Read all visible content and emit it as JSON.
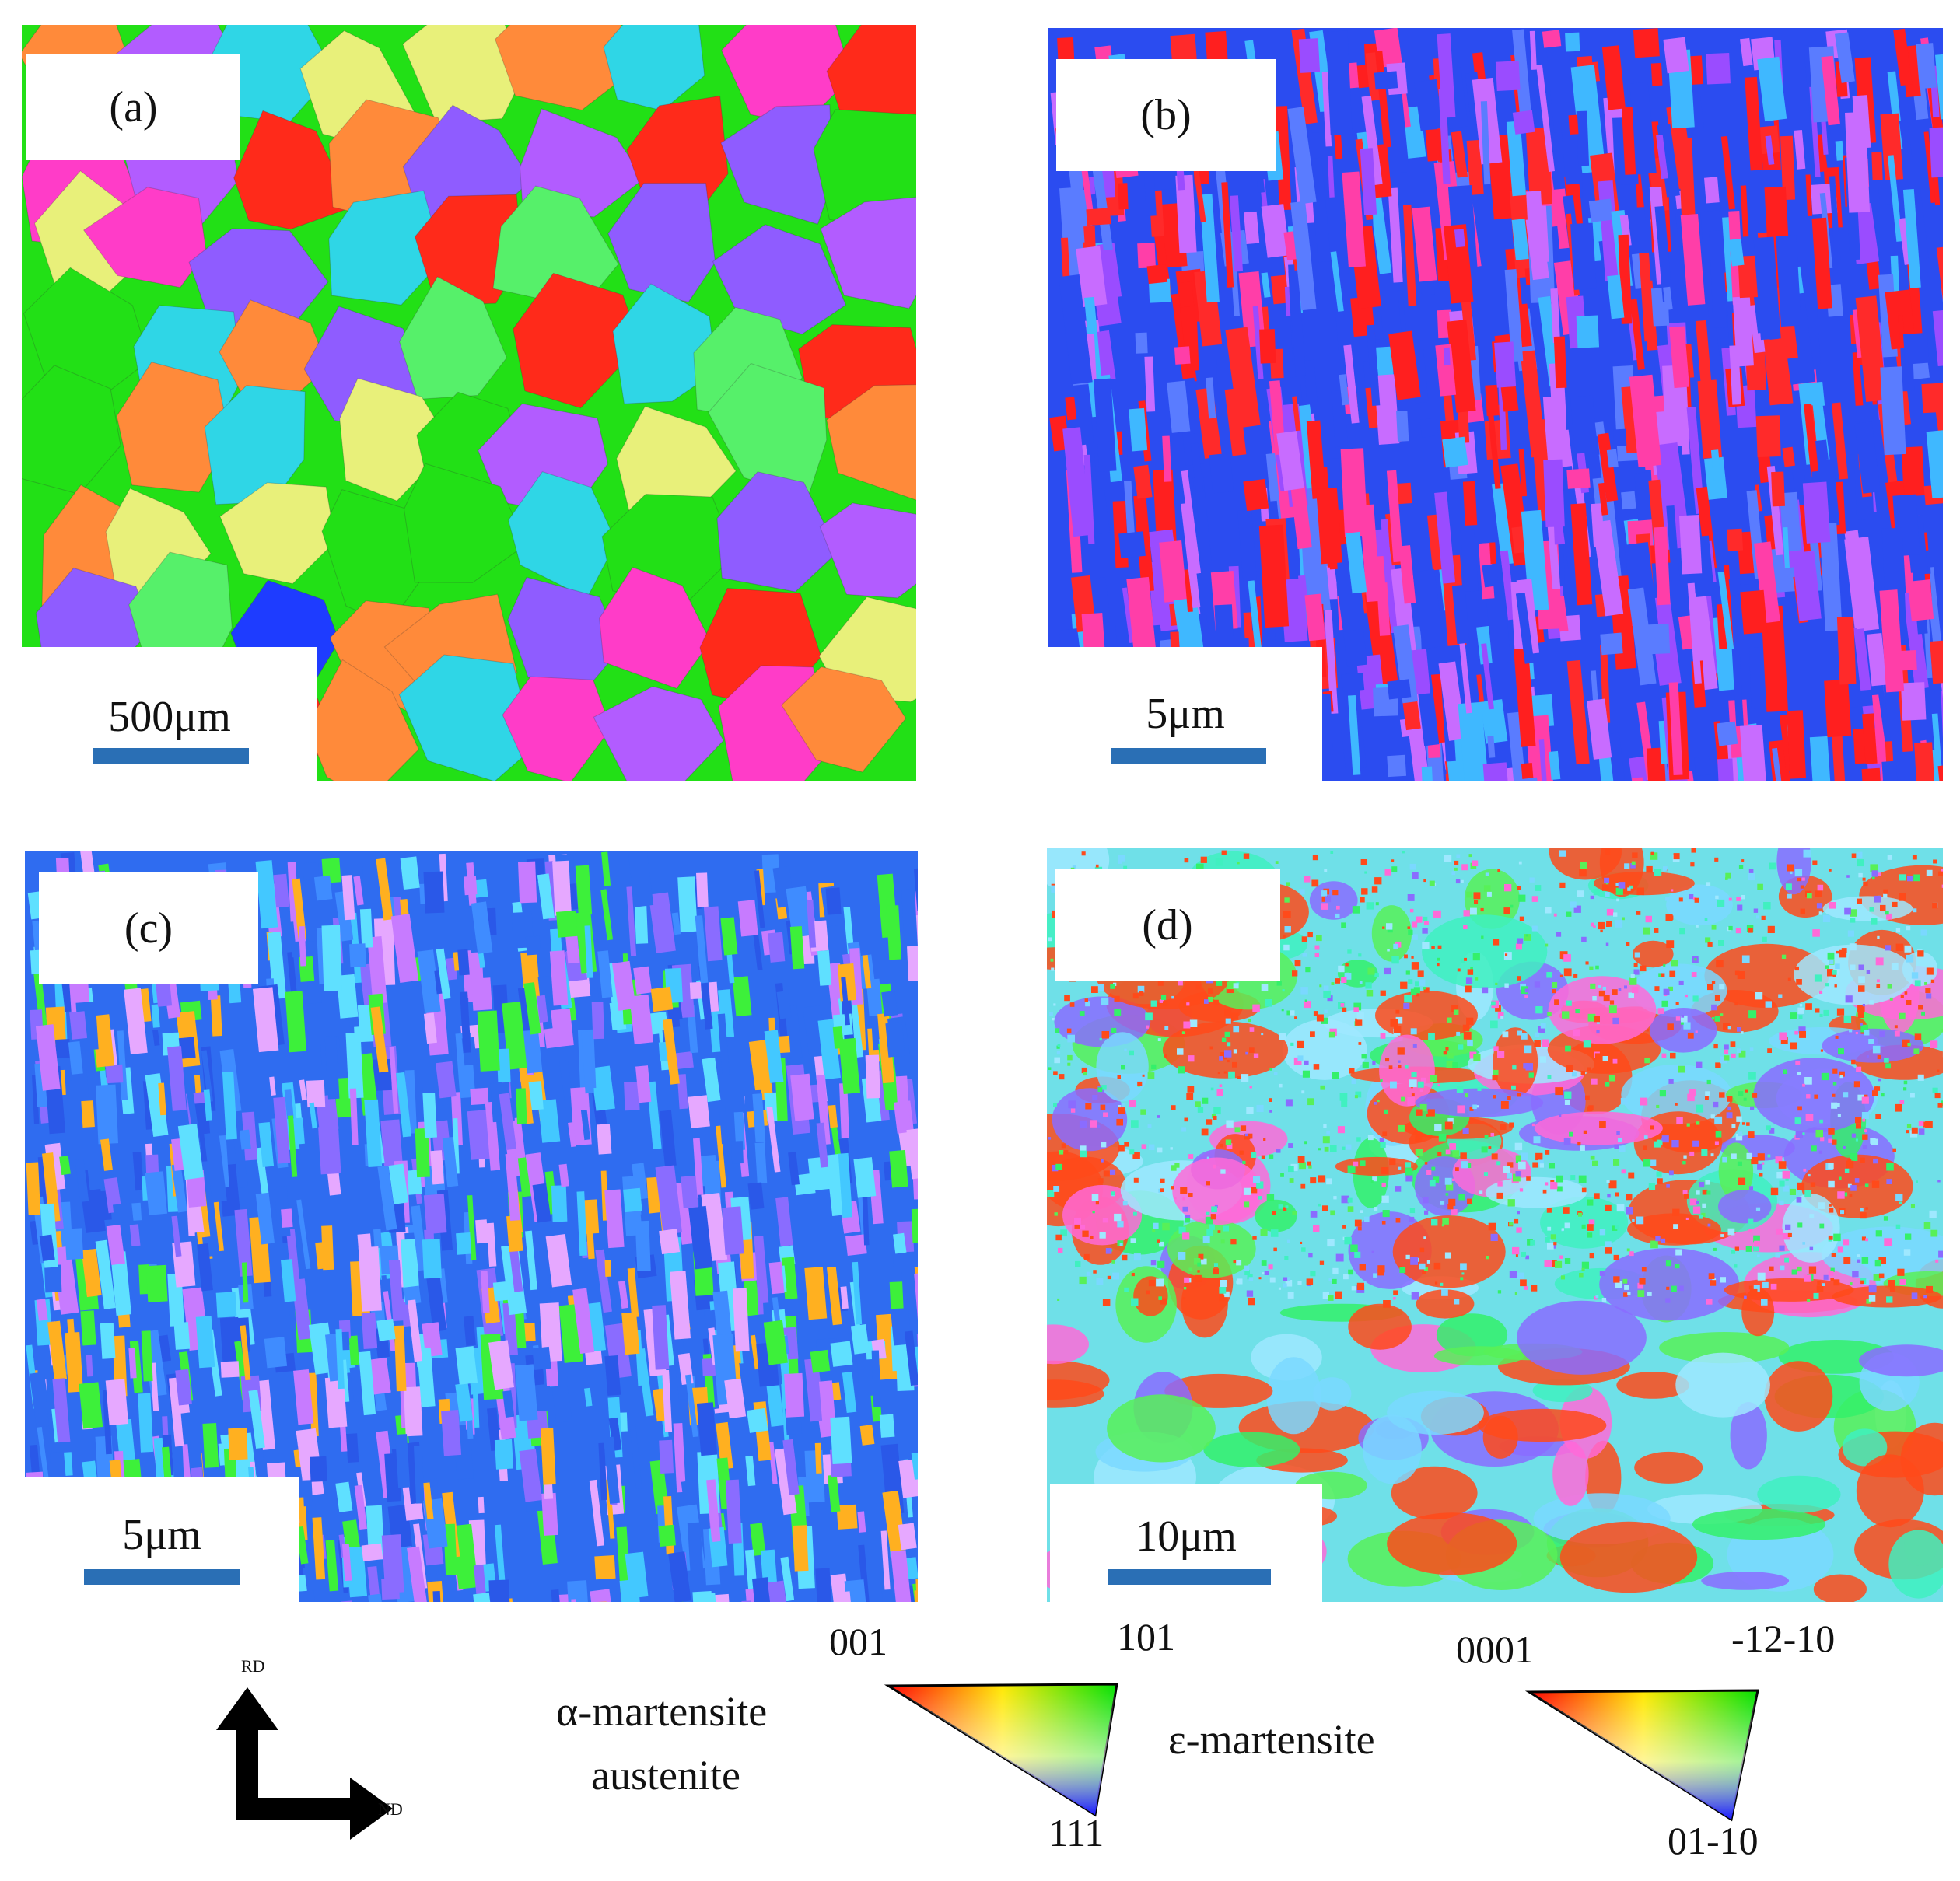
{
  "panels": [
    {
      "id": "a",
      "label": "(a)",
      "scale": "500μm",
      "base": "#22e016",
      "palette": [
        "#ff2a1a",
        "#22e016",
        "#ff3cc8",
        "#2fd6e6",
        "#8f5cff",
        "#1e3cff",
        "#e8f07a",
        "#ff8a3a",
        "#b25cff",
        "#56f06a"
      ]
    },
    {
      "id": "b",
      "label": "(b)",
      "scale": "5μm",
      "base": "#2b4cf0",
      "palette": [
        "#ff1f1f",
        "#2b4cf0",
        "#ff1f1f",
        "#5a7cff",
        "#9a4cff",
        "#ff3ea8",
        "#3fb8ff",
        "#ff2a2a",
        "#2b4cf0",
        "#c86cff"
      ]
    },
    {
      "id": "c",
      "label": "(c)",
      "scale": "5μm",
      "base": "#2f6cf0",
      "palette": [
        "#2f6cf0",
        "#3f8cff",
        "#2a58e8",
        "#43c8ff",
        "#8a6cff",
        "#5fe0ff",
        "#c77bff",
        "#ffb020",
        "#3df03a",
        "#e6a8ff"
      ]
    },
    {
      "id": "d",
      "label": "(d)",
      "scale": "10μm",
      "base": "#6fe0e8",
      "palette": [
        "#ff4a1a",
        "#34f06a",
        "#7ad8ff",
        "#ff4a1a",
        "#40f0c0",
        "#ff6ad8",
        "#8a6cff",
        "#ff4a1a",
        "#58f058",
        "#9fe8ff"
      ]
    }
  ],
  "axes": {
    "rd": "RD",
    "nd": "ND"
  },
  "legend": {
    "alpha": {
      "line1": "α-martensite",
      "line2": "austenite",
      "top_left": "001",
      "top_right": "101",
      "bottom": "111"
    },
    "epsilon": {
      "name": "ε-martensite",
      "top_left": "0001",
      "top_right": "-12-10",
      "bottom": "01-10"
    }
  }
}
